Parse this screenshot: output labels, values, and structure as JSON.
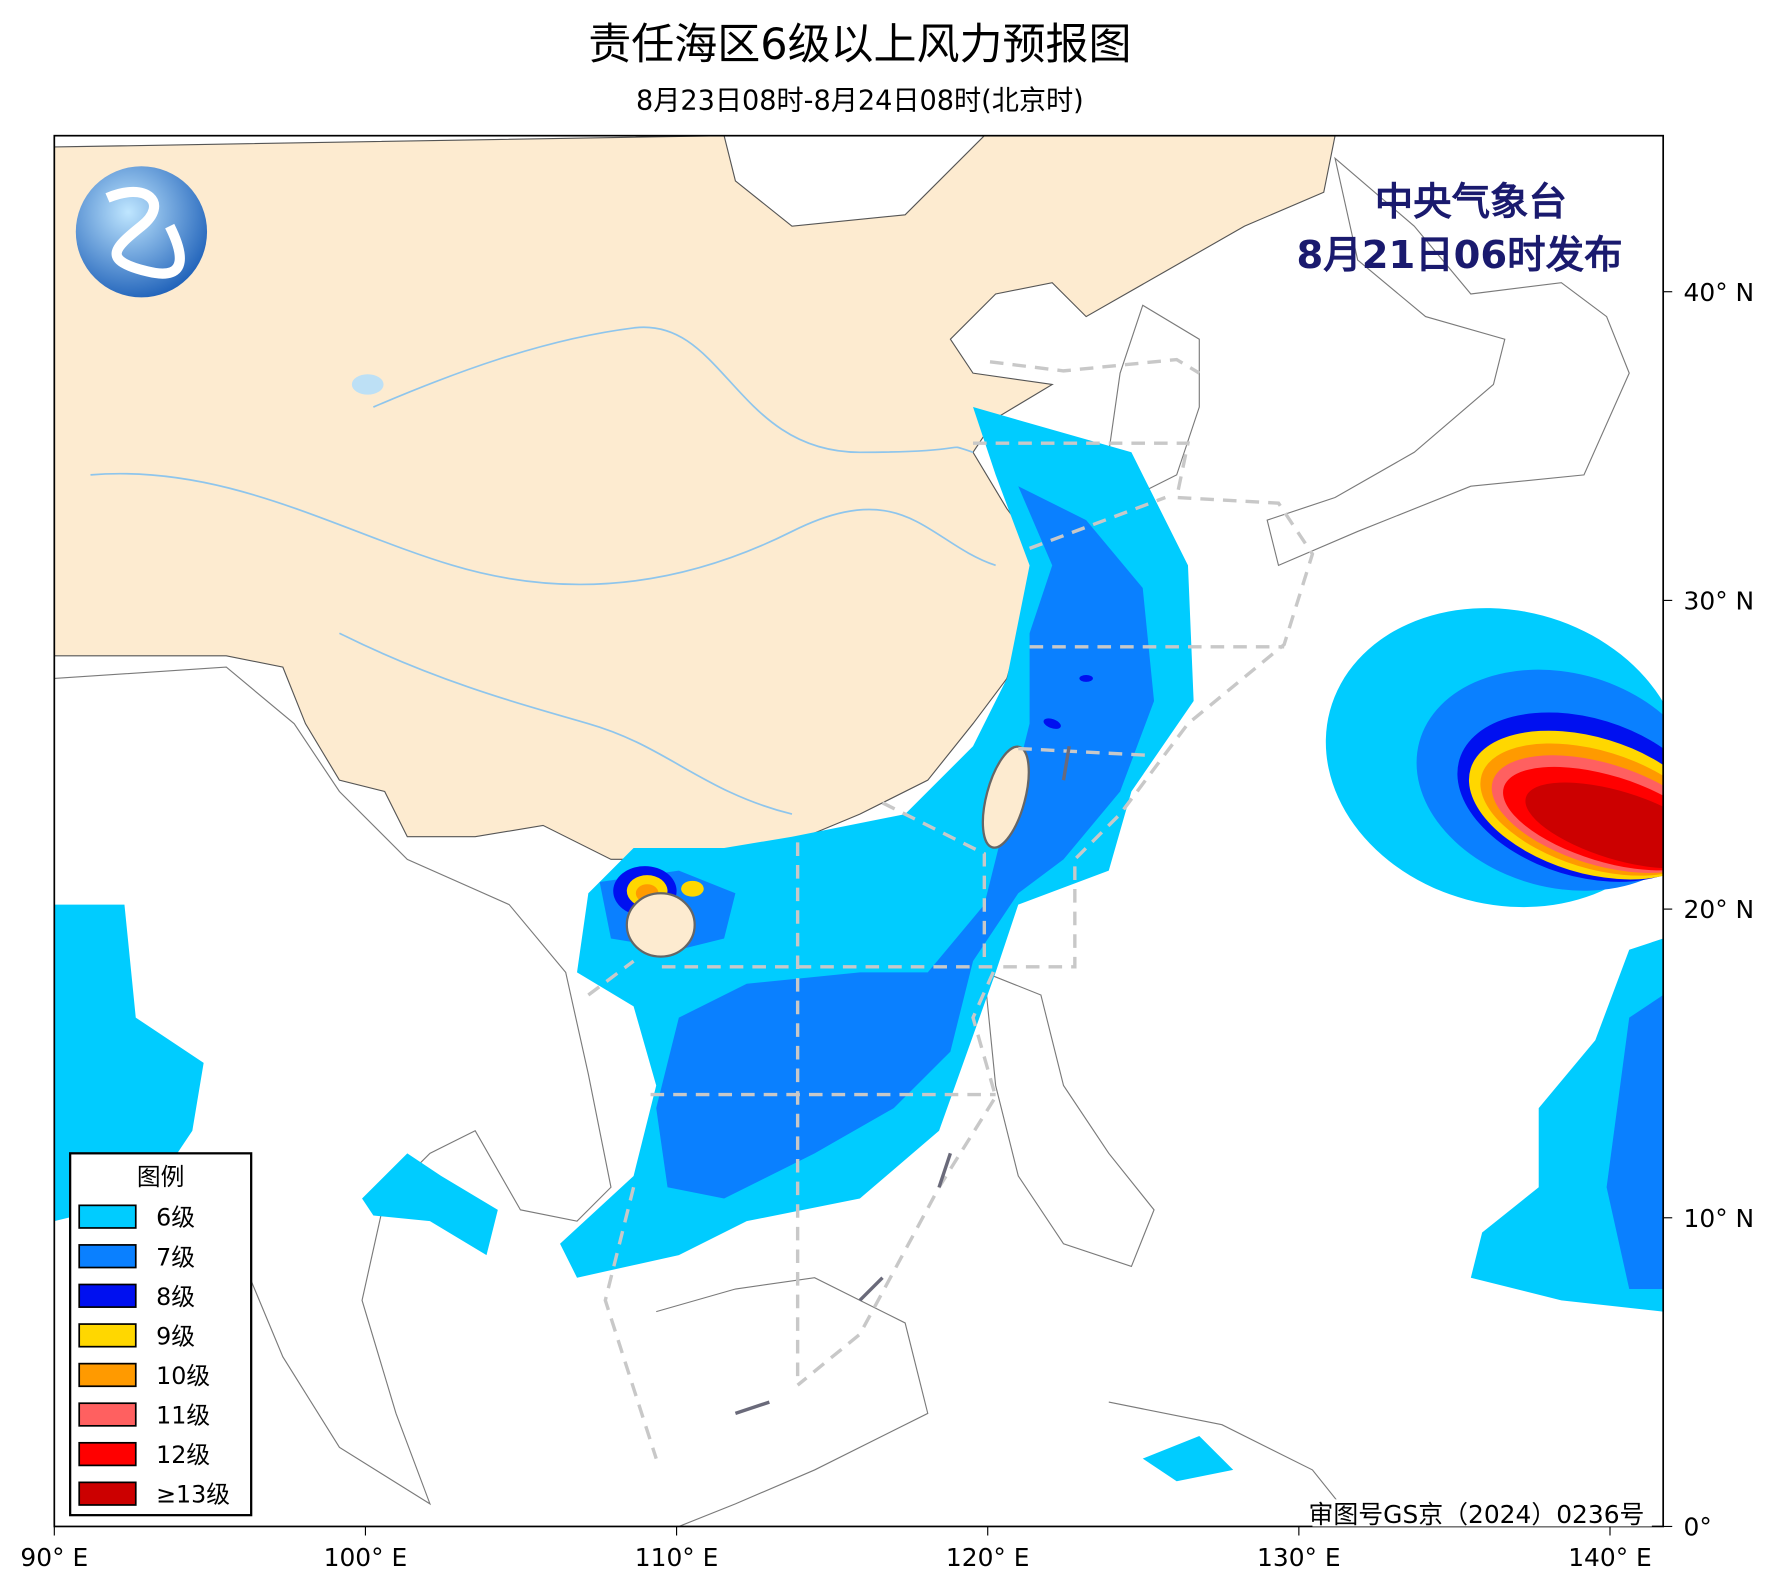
{
  "header": {
    "title": "责任海区6级以上风力预报图",
    "subtitle": "8月23日08时-8月24日08时(北京时)"
  },
  "issuer": {
    "name": "中央气象台",
    "issued": "8月21日06时发布"
  },
  "legend": {
    "title": "图例",
    "items": [
      {
        "label": "6级",
        "color": "#00ccff"
      },
      {
        "label": "7级",
        "color": "#0a80ff"
      },
      {
        "label": "8级",
        "color": "#0010f0"
      },
      {
        "label": "9级",
        "color": "#ffd700"
      },
      {
        "label": "10级",
        "color": "#ff9a00"
      },
      {
        "label": "11级",
        "color": "#ff6060"
      },
      {
        "label": "12级",
        "color": "#ff0000"
      },
      {
        "label": "≥13级",
        "color": "#cc0000"
      }
    ]
  },
  "axes": {
    "lon_ticks": [
      {
        "value": 90,
        "label": "90° E"
      },
      {
        "value": 100,
        "label": "100° E"
      },
      {
        "value": 110,
        "label": "110° E"
      },
      {
        "value": 120,
        "label": "120° E"
      },
      {
        "value": 130,
        "label": "130° E"
      },
      {
        "value": 140,
        "label": "140° E"
      }
    ],
    "lat_ticks": [
      {
        "value": 0,
        "label": "0°"
      },
      {
        "value": 10,
        "label": "10° N"
      },
      {
        "value": 20,
        "label": "20° N"
      },
      {
        "value": 30,
        "label": "30° N"
      },
      {
        "value": 40,
        "label": "40° N"
      }
    ]
  },
  "copyright": "审图号GS京（2024）0236号"
}
